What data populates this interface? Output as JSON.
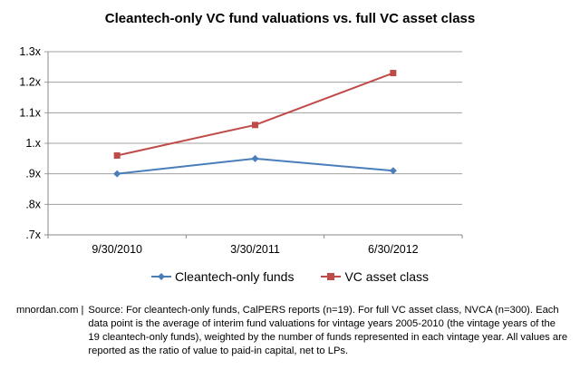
{
  "chart_data": {
    "type": "line",
    "title": "Cleantech-only VC fund valuations vs. full VC asset class",
    "categories": [
      "9/30/2010",
      "3/30/2011",
      "6/30/2012"
    ],
    "yticks": [
      ".7x",
      ".8x",
      ".9x",
      "1.x",
      "1.1x",
      "1.2x",
      "1.3x"
    ],
    "ylim": [
      0.7,
      1.3
    ],
    "grid": true,
    "legend_position": "bottom",
    "series": [
      {
        "name": "Cleantech-only funds",
        "values": [
          0.9,
          0.95,
          0.91
        ],
        "color": "#4a7ebb",
        "marker": "diamond"
      },
      {
        "name": "VC asset class",
        "values": [
          0.96,
          1.06,
          1.23
        ],
        "color": "#be4b48",
        "marker": "square"
      }
    ]
  },
  "footer": {
    "source_site": "mnordan.com |",
    "note": "Source: For cleantech-only funds, CalPERS reports (n=19). For full VC asset class, NVCA (n=300). Each data point is the average of interim fund valuations for vintage years 2005-2010 (the vintage years of the 19 cleantech-only funds), weighted by the number of funds represented in each vintage year. All values are reported as the ratio of value to paid-in capital, net to LPs."
  }
}
